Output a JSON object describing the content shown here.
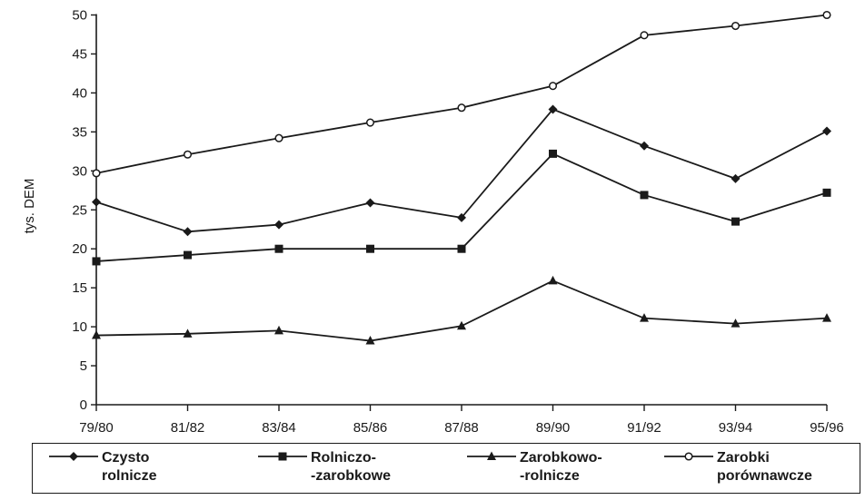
{
  "chart_data": {
    "type": "line",
    "ylabel": "tys. DEM",
    "xlabel": "",
    "categories": [
      "79/80",
      "81/82",
      "83/84",
      "85/86",
      "87/88",
      "89/90",
      "91/92",
      "93/94",
      "95/96"
    ],
    "ylim": [
      0,
      50
    ],
    "yticks": [
      0,
      5,
      10,
      15,
      20,
      25,
      30,
      35,
      40,
      45,
      50
    ],
    "grid": false,
    "legend_position": "bottom",
    "series": [
      {
        "name": "Czysto\nrolnicze",
        "marker": "diamond",
        "values": [
          26,
          22.2,
          23.1,
          25.9,
          24,
          37.9,
          33.2,
          29,
          35.1
        ]
      },
      {
        "name": "Rolniczo-\n-zarobkowe",
        "marker": "square",
        "values": [
          18.4,
          19.2,
          20,
          20,
          20,
          32.2,
          26.9,
          23.5,
          27.2
        ]
      },
      {
        "name": "Zarobkowo-\n-rolnicze",
        "marker": "triangle",
        "values": [
          8.9,
          9.1,
          9.5,
          8.2,
          10.1,
          15.9,
          11.1,
          10.4,
          11.1
        ]
      },
      {
        "name": "Zarobki\nporównawcze",
        "marker": "circle",
        "values": [
          29.7,
          32.1,
          34.2,
          36.2,
          38.1,
          40.9,
          47.4,
          48.6,
          50
        ]
      }
    ]
  },
  "colors": {
    "line": "#1a1a1a",
    "background": "#ffffff"
  }
}
